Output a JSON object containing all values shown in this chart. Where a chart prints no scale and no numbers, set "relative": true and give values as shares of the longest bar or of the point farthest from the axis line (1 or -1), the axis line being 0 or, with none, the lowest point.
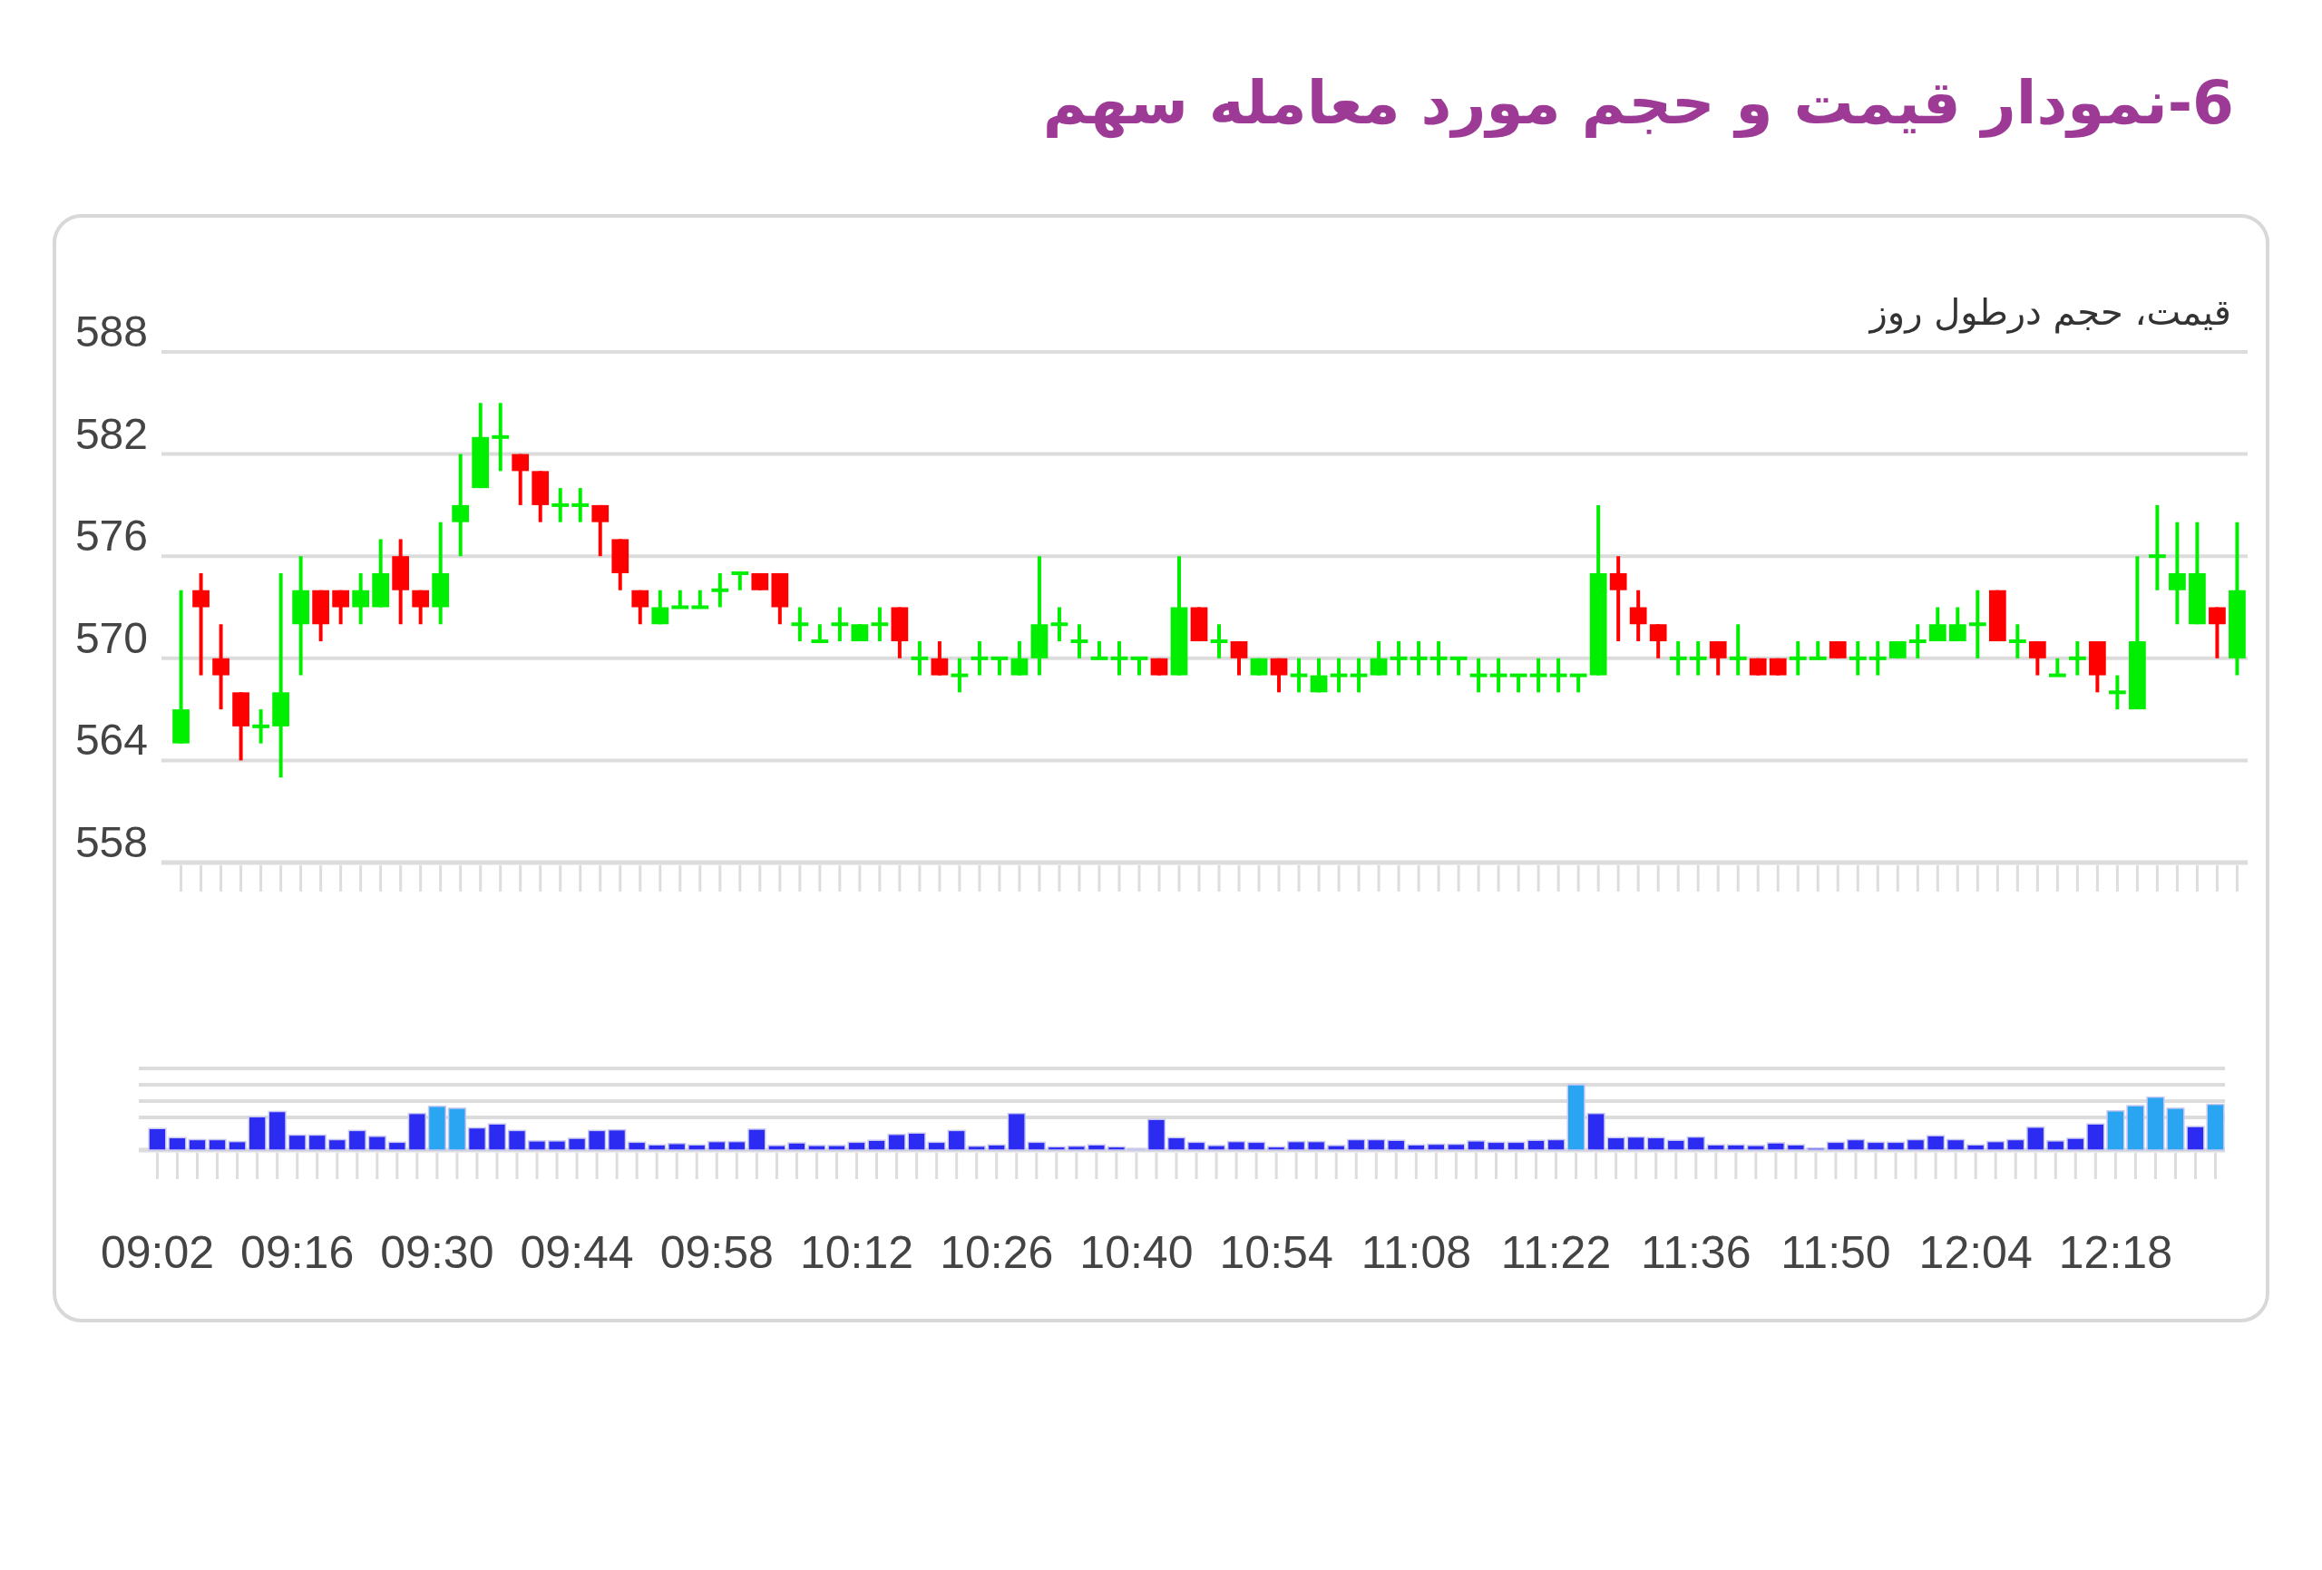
{
  "chart_data": [
    {
      "type": "candlestick",
      "title": "6-نمودار قیمت و حجم مورد معامله سهم",
      "subtitle": "قیمت، حجم درطول روز",
      "categories": [
        null,
        null,
        null,
        null,
        null,
        null,
        null,
        null,
        null,
        null,
        null,
        null,
        null,
        null,
        null,
        null,
        null,
        null,
        null,
        null,
        null,
        null,
        null,
        null,
        null,
        null,
        null,
        null,
        null,
        null,
        null,
        null,
        null,
        null,
        null,
        null,
        null,
        null,
        null,
        null,
        null,
        null,
        null,
        null,
        null,
        null,
        null,
        null,
        null,
        null,
        null,
        null,
        null,
        null,
        null,
        null,
        null,
        null,
        null,
        null,
        null,
        null,
        null,
        null,
        null,
        null,
        null,
        null,
        null,
        null,
        null,
        null,
        null,
        null,
        null,
        null,
        null,
        null,
        null,
        null,
        null,
        null,
        null,
        null,
        null,
        null,
        null,
        null,
        null,
        null,
        null,
        null,
        null,
        null,
        null,
        null,
        null,
        null,
        null,
        null,
        null,
        null,
        null,
        null
      ],
      "ohlc": [
        [
          565,
          574,
          565,
          567
        ],
        [
          574,
          575,
          569,
          573
        ],
        [
          570,
          572,
          567,
          569
        ],
        [
          568,
          568,
          564,
          566
        ],
        [
          566,
          567,
          565,
          566
        ],
        [
          566,
          575,
          563,
          568
        ],
        [
          572,
          576,
          569,
          574
        ],
        [
          574,
          574,
          571,
          572
        ],
        [
          574,
          574,
          572,
          573
        ],
        [
          573,
          575,
          572,
          574
        ],
        [
          573,
          577,
          573,
          575
        ],
        [
          576,
          577,
          572,
          574
        ],
        [
          574,
          574,
          572,
          573
        ],
        [
          573,
          578,
          572,
          575
        ],
        [
          578,
          582,
          576,
          579
        ],
        [
          580,
          585,
          580,
          583
        ],
        [
          583,
          585,
          581,
          583
        ],
        [
          582,
          582,
          579,
          581
        ],
        [
          581,
          581,
          578,
          579
        ],
        [
          579,
          580,
          578,
          579
        ],
        [
          579,
          580,
          578,
          579
        ],
        [
          579,
          579,
          576,
          578
        ],
        [
          577,
          577,
          574,
          575
        ],
        [
          574,
          574,
          572,
          573
        ],
        [
          572,
          574,
          572,
          573
        ],
        [
          573,
          574,
          573,
          573
        ],
        [
          573,
          574,
          573,
          573
        ],
        [
          574,
          575,
          573,
          574
        ],
        [
          575,
          575,
          574,
          575
        ],
        [
          575,
          575,
          574,
          574
        ],
        [
          575,
          575,
          572,
          573
        ],
        [
          572,
          573,
          571,
          572
        ],
        [
          571,
          572,
          571,
          571
        ],
        [
          572,
          573,
          571,
          572
        ],
        [
          571,
          572,
          571,
          572
        ],
        [
          572,
          573,
          571,
          572
        ],
        [
          573,
          573,
          570,
          571
        ],
        [
          570,
          571,
          569,
          570
        ],
        [
          570,
          571,
          569,
          569
        ],
        [
          569,
          570,
          568,
          569
        ],
        [
          570,
          571,
          569,
          570
        ],
        [
          570,
          570,
          569,
          570
        ],
        [
          569,
          571,
          569,
          570
        ],
        [
          570,
          576,
          569,
          572
        ],
        [
          572,
          573,
          571,
          572
        ],
        [
          571,
          572,
          570,
          571
        ],
        [
          570,
          571,
          570,
          570
        ],
        [
          570,
          571,
          569,
          570
        ],
        [
          570,
          570,
          569,
          570
        ],
        [
          570,
          570,
          569,
          569
        ],
        [
          569,
          576,
          569,
          573
        ],
        [
          573,
          573,
          571,
          571
        ],
        [
          571,
          572,
          570,
          571
        ],
        [
          571,
          571,
          569,
          570
        ],
        [
          569,
          570,
          569,
          570
        ],
        [
          570,
          570,
          568,
          569
        ],
        [
          569,
          570,
          568,
          569
        ],
        [
          568,
          570,
          568,
          569
        ],
        [
          569,
          570,
          568,
          569
        ],
        [
          569,
          570,
          568,
          569
        ],
        [
          569,
          571,
          569,
          570
        ],
        [
          570,
          571,
          569,
          570
        ],
        [
          570,
          571,
          569,
          570
        ],
        [
          570,
          571,
          569,
          570
        ],
        [
          570,
          570,
          569,
          570
        ],
        [
          569,
          570,
          568,
          569
        ],
        [
          569,
          570,
          568,
          569
        ],
        [
          569,
          569,
          568,
          569
        ],
        [
          569,
          570,
          568,
          569
        ],
        [
          569,
          570,
          568,
          569
        ],
        [
          569,
          569,
          568,
          569
        ],
        [
          569,
          579,
          569,
          575
        ],
        [
          575,
          576,
          571,
          574
        ],
        [
          573,
          574,
          571,
          572
        ],
        [
          572,
          572,
          570,
          571
        ],
        [
          570,
          571,
          569,
          570
        ],
        [
          570,
          571,
          569,
          570
        ],
        [
          571,
          571,
          569,
          570
        ],
        [
          570,
          572,
          569,
          570
        ],
        [
          570,
          570,
          569,
          569
        ],
        [
          570,
          570,
          569,
          569
        ],
        [
          570,
          571,
          569,
          570
        ],
        [
          570,
          571,
          570,
          570
        ],
        [
          571,
          571,
          570,
          570
        ],
        [
          570,
          571,
          569,
          570
        ],
        [
          570,
          571,
          569,
          570
        ],
        [
          570,
          571,
          570,
          571
        ],
        [
          571,
          572,
          570,
          571
        ],
        [
          571,
          573,
          571,
          572
        ],
        [
          571,
          573,
          571,
          572
        ],
        [
          572,
          574,
          570,
          572
        ],
        [
          574,
          574,
          571,
          571
        ],
        [
          571,
          572,
          570,
          571
        ],
        [
          571,
          571,
          569,
          570
        ],
        [
          569,
          570,
          569,
          569
        ],
        [
          570,
          571,
          569,
          570
        ],
        [
          571,
          571,
          568,
          569
        ],
        [
          568,
          569,
          567,
          568
        ],
        [
          567,
          576,
          567,
          571
        ],
        [
          576,
          579,
          574,
          576
        ],
        [
          574,
          578,
          572,
          575
        ],
        [
          572,
          578,
          572,
          575
        ],
        [
          573,
          573,
          570,
          572
        ],
        [
          570,
          578,
          569,
          574
        ]
      ],
      "colors": [
        "#00ee00",
        "#ff0000",
        "#ff0000",
        "#ff0000",
        "#00ee00",
        "#00ee00",
        "#00ee00",
        "#ff0000",
        "#ff0000",
        "#00ee00",
        "#00ee00",
        "#ff0000",
        "#ff0000",
        "#00ee00",
        "#00ee00",
        "#00ee00",
        "#00ee00",
        "#ff0000",
        "#ff0000",
        "#00ee00",
        "#00ee00",
        "#ff0000",
        "#ff0000",
        "#ff0000",
        "#00ee00",
        "#00ee00",
        "#00ee00",
        "#00ee00",
        "#00ee00",
        "#ff0000",
        "#ff0000",
        "#00ee00",
        "#00ee00",
        "#00ee00",
        "#00ee00",
        "#00ee00",
        "#ff0000",
        "#00ee00",
        "#ff0000",
        "#00ee00",
        "#00ee00",
        "#00ee00",
        "#00ee00",
        "#00ee00",
        "#00ee00",
        "#00ee00",
        "#00ee00",
        "#00ee00",
        "#00ee00",
        "#ff0000",
        "#00ee00",
        "#ff0000",
        "#00ee00",
        "#ff0000",
        "#00ee00",
        "#ff0000",
        "#00ee00",
        "#00ee00",
        "#00ee00",
        "#00ee00",
        "#00ee00",
        "#00ee00",
        "#00ee00",
        "#00ee00",
        "#00ee00",
        "#00ee00",
        "#00ee00",
        "#00ee00",
        "#00ee00",
        "#00ee00",
        "#00ee00",
        "#00ee00",
        "#ff0000",
        "#ff0000",
        "#ff0000",
        "#00ee00",
        "#00ee00",
        "#ff0000",
        "#00ee00",
        "#ff0000",
        "#ff0000",
        "#00ee00",
        "#00ee00",
        "#ff0000",
        "#00ee00",
        "#00ee00",
        "#00ee00",
        "#00ee00",
        "#00ee00",
        "#00ee00",
        "#00ee00",
        "#ff0000",
        "#00ee00",
        "#ff0000",
        "#00ee00",
        "#00ee00",
        "#ff0000",
        "#00ee00",
        "#00ee00",
        "#00ee00",
        "#00ee00",
        "#00ee00",
        "#ff0000",
        "#00ee00"
      ],
      "ylim": [
        558,
        588
      ],
      "yticks": [
        558,
        564,
        570,
        576,
        582,
        588
      ],
      "grid": "y",
      "tick_labels": "y"
    },
    {
      "type": "bar",
      "relative": true,
      "ref_lines": [
        {
          "axis": "y",
          "value": 0.5,
          "color": "#dcdcdc"
        },
        {
          "axis": "y",
          "value": 0.75,
          "color": "#dcdcdc"
        },
        {
          "axis": "y",
          "value": 1,
          "color": "#dcdcdc"
        },
        {
          "axis": "y",
          "value": 1.25,
          "color": "#dcdcdc"
        }
      ],
      "categories": [
        "09:02",
        null,
        null,
        null,
        null,
        null,
        null,
        "09:16",
        null,
        null,
        null,
        null,
        null,
        null,
        "09:30",
        null,
        null,
        null,
        null,
        null,
        null,
        "09:44",
        null,
        null,
        null,
        null,
        null,
        null,
        "09:58",
        null,
        null,
        null,
        null,
        null,
        null,
        "10:12",
        null,
        null,
        null,
        null,
        null,
        null,
        "10:26",
        null,
        null,
        null,
        null,
        null,
        null,
        "10:40",
        null,
        null,
        null,
        null,
        null,
        null,
        "10:54",
        null,
        null,
        null,
        null,
        null,
        null,
        "11:08",
        null,
        null,
        null,
        null,
        null,
        null,
        "11:22",
        null,
        null,
        null,
        null,
        null,
        null,
        "11:36",
        null,
        null,
        null,
        null,
        null,
        null,
        "11:50",
        null,
        null,
        null,
        null,
        null,
        null,
        "12:04",
        null,
        null,
        null,
        null,
        null,
        null,
        "12:18",
        null,
        null,
        null,
        null,
        null
      ],
      "values": [
        0.33,
        0.19,
        0.16,
        0.16,
        0.13,
        0.51,
        0.59,
        0.23,
        0.23,
        0.16,
        0.3,
        0.21,
        0.12,
        0.56,
        0.67,
        0.64,
        0.34,
        0.4,
        0.3,
        0.14,
        0.14,
        0.18,
        0.3,
        0.31,
        0.12,
        0.08,
        0.1,
        0.08,
        0.13,
        0.13,
        0.32,
        0.07,
        0.11,
        0.07,
        0.07,
        0.12,
        0.15,
        0.24,
        0.26,
        0.12,
        0.3,
        0.06,
        0.08,
        0.56,
        0.12,
        0.05,
        0.06,
        0.08,
        0.05,
        0.02,
        0.47,
        0.19,
        0.12,
        0.07,
        0.13,
        0.12,
        0.05,
        0.13,
        0.13,
        0.07,
        0.16,
        0.16,
        0.15,
        0.08,
        0.09,
        0.09,
        0.14,
        0.12,
        0.12,
        0.15,
        0.16,
        1,
        0.56,
        0.19,
        0.2,
        0.19,
        0.15,
        0.2,
        0.08,
        0.08,
        0.07,
        0.11,
        0.08,
        0.03,
        0.12,
        0.16,
        0.12,
        0.12,
        0.16,
        0.22,
        0.16,
        0.08,
        0.13,
        0.16,
        0.35,
        0.14,
        0.18,
        0.4,
        0.6,
        0.68,
        0.81,
        0.64,
        0.36,
        0.7
      ],
      "colors": [
        "#2b2bf2",
        "#2b2bf2",
        "#2b2bf2",
        "#2b2bf2",
        "#2b2bf2",
        "#2b2bf2",
        "#2b2bf2",
        "#2b2bf2",
        "#2b2bf2",
        "#2b2bf2",
        "#2b2bf2",
        "#2b2bf2",
        "#2b2bf2",
        "#2b2bf2",
        "#2aa5f2",
        "#2aa5f2",
        "#2b2bf2",
        "#2b2bf2",
        "#2b2bf2",
        "#2b2bf2",
        "#2b2bf2",
        "#2b2bf2",
        "#2b2bf2",
        "#2b2bf2",
        "#2b2bf2",
        "#2b2bf2",
        "#2b2bf2",
        "#2b2bf2",
        "#2b2bf2",
        "#2b2bf2",
        "#2b2bf2",
        "#2b2bf2",
        "#2b2bf2",
        "#2b2bf2",
        "#2b2bf2",
        "#2b2bf2",
        "#2b2bf2",
        "#2b2bf2",
        "#2b2bf2",
        "#2b2bf2",
        "#2b2bf2",
        "#2b2bf2",
        "#2b2bf2",
        "#2b2bf2",
        "#2b2bf2",
        "#2b2bf2",
        "#2b2bf2",
        "#2b2bf2",
        "#2b2bf2",
        "#2b2bf2",
        "#2b2bf2",
        "#2b2bf2",
        "#2b2bf2",
        "#2b2bf2",
        "#2b2bf2",
        "#2b2bf2",
        "#2b2bf2",
        "#2b2bf2",
        "#2b2bf2",
        "#2b2bf2",
        "#2b2bf2",
        "#2b2bf2",
        "#2b2bf2",
        "#2b2bf2",
        "#2b2bf2",
        "#2b2bf2",
        "#2b2bf2",
        "#2b2bf2",
        "#2b2bf2",
        "#2b2bf2",
        "#2b2bf2",
        "#2aa5f2",
        "#2b2bf2",
        "#2b2bf2",
        "#2b2bf2",
        "#2b2bf2",
        "#2b2bf2",
        "#2b2bf2",
        "#2b2bf2",
        "#2b2bf2",
        "#2b2bf2",
        "#2b2bf2",
        "#2b2bf2",
        "#2b2bf2",
        "#2b2bf2",
        "#2b2bf2",
        "#2b2bf2",
        "#2b2bf2",
        "#2b2bf2",
        "#2b2bf2",
        "#2b2bf2",
        "#2b2bf2",
        "#2b2bf2",
        "#2b2bf2",
        "#2b2bf2",
        "#2b2bf2",
        "#2b2bf2",
        "#2b2bf2",
        "#2aa5f2",
        "#2aa5f2",
        "#2aa5f2",
        "#2aa5f2",
        "#2b2bf2",
        "#2aa5f2"
      ]
    }
  ]
}
